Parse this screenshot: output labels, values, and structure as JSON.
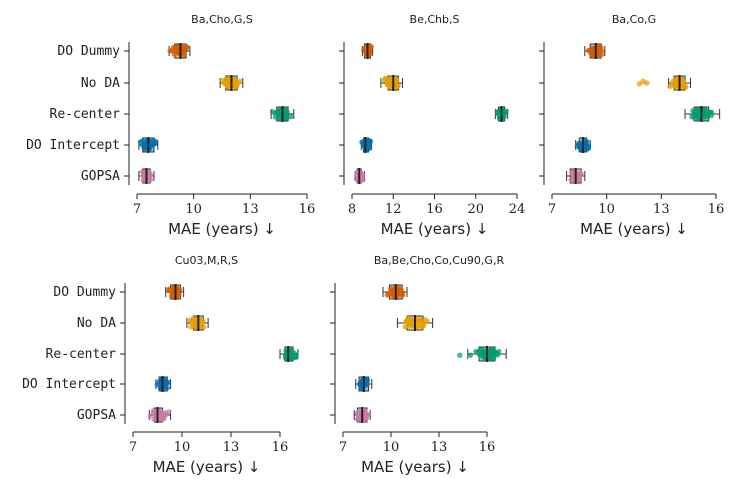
{
  "chart_data": {
    "type": "boxplot",
    "categories": [
      "DO Dummy",
      "No DA",
      "Re-center",
      "DO Intercept",
      "GOPSA"
    ],
    "colors": {
      "DO Dummy": "#d55e00",
      "No DA": "#e69f00",
      "Re-center": "#009e73",
      "DO Intercept": "#0072b2",
      "GOPSA": "#cc79a7"
    },
    "xlabel": "MAE (years) ↓",
    "panels": [
      {
        "title": "Ba,Cho,G,S",
        "xlim": [
          7,
          16
        ],
        "xticks": [
          7,
          10,
          13,
          16
        ],
        "groups": [
          {
            "category": "DO Dummy",
            "median": 9.3,
            "q1": 9.0,
            "q3": 9.6,
            "min": 8.7,
            "max": 9.8,
            "outliers": []
          },
          {
            "category": "No DA",
            "median": 12.0,
            "q1": 11.7,
            "q3": 12.3,
            "min": 11.4,
            "max": 12.6,
            "outliers": []
          },
          {
            "category": "Re-center",
            "median": 14.7,
            "q1": 14.4,
            "q3": 15.0,
            "min": 14.1,
            "max": 15.3,
            "outliers": []
          },
          {
            "category": "DO Intercept",
            "median": 7.6,
            "q1": 7.3,
            "q3": 7.9,
            "min": 7.1,
            "max": 8.1,
            "outliers": []
          },
          {
            "category": "GOPSA",
            "median": 7.5,
            "q1": 7.3,
            "q3": 7.7,
            "min": 7.1,
            "max": 7.9,
            "outliers": []
          }
        ]
      },
      {
        "title": "Be,Chb,S",
        "xlim": [
          8,
          24
        ],
        "xticks": [
          8,
          12,
          16,
          20,
          24
        ],
        "groups": [
          {
            "category": "DO Dummy",
            "median": 9.5,
            "q1": 9.2,
            "q3": 9.8,
            "min": 9.0,
            "max": 10.0,
            "outliers": []
          },
          {
            "category": "No DA",
            "median": 12.0,
            "q1": 11.5,
            "q3": 12.5,
            "min": 10.8,
            "max": 12.9,
            "outliers": []
          },
          {
            "category": "Re-center",
            "median": 22.5,
            "q1": 22.2,
            "q3": 22.8,
            "min": 21.9,
            "max": 23.1,
            "outliers": []
          },
          {
            "category": "DO Intercept",
            "median": 9.3,
            "q1": 9.1,
            "q3": 9.6,
            "min": 8.9,
            "max": 9.9,
            "outliers": []
          },
          {
            "category": "GOPSA",
            "median": 8.7,
            "q1": 8.5,
            "q3": 8.9,
            "min": 8.3,
            "max": 9.2,
            "outliers": []
          }
        ]
      },
      {
        "title": "Ba,Co,G",
        "xlim": [
          7,
          16
        ],
        "xticks": [
          7,
          10,
          13,
          16
        ],
        "groups": [
          {
            "category": "DO Dummy",
            "median": 9.4,
            "q1": 9.1,
            "q3": 9.7,
            "min": 8.8,
            "max": 9.9,
            "outliers": []
          },
          {
            "category": "No DA",
            "median": 14.0,
            "q1": 13.7,
            "q3": 14.3,
            "min": 13.4,
            "max": 14.6,
            "outliers": [
              11.8,
              12.0,
              12.2
            ]
          },
          {
            "category": "Re-center",
            "median": 15.2,
            "q1": 14.8,
            "q3": 15.6,
            "min": 14.3,
            "max": 16.2,
            "outliers": []
          },
          {
            "category": "DO Intercept",
            "median": 8.7,
            "q1": 8.5,
            "q3": 8.9,
            "min": 8.3,
            "max": 9.1,
            "outliers": []
          },
          {
            "category": "GOPSA",
            "median": 8.3,
            "q1": 8.0,
            "q3": 8.6,
            "min": 7.8,
            "max": 8.8,
            "outliers": []
          }
        ]
      },
      {
        "title": "Cu03,M,R,S",
        "xlim": [
          7,
          16
        ],
        "xticks": [
          7,
          10,
          13,
          16
        ],
        "groups": [
          {
            "category": "DO Dummy",
            "median": 9.6,
            "q1": 9.3,
            "q3": 9.9,
            "min": 9.0,
            "max": 10.1,
            "outliers": []
          },
          {
            "category": "No DA",
            "median": 11.0,
            "q1": 10.7,
            "q3": 11.3,
            "min": 10.3,
            "max": 11.6,
            "outliers": []
          },
          {
            "category": "Re-center",
            "median": 16.5,
            "q1": 16.3,
            "q3": 16.8,
            "min": 16.0,
            "max": 17.1,
            "outliers": []
          },
          {
            "category": "DO Intercept",
            "median": 8.8,
            "q1": 8.6,
            "q3": 9.1,
            "min": 8.4,
            "max": 9.3,
            "outliers": []
          },
          {
            "category": "GOPSA",
            "median": 8.5,
            "q1": 8.3,
            "q3": 8.8,
            "min": 8.0,
            "max": 9.3,
            "outliers": []
          }
        ]
      },
      {
        "title": "Ba,Be,Cho,Co,Cu90,G,R",
        "xlim": [
          7,
          19
        ],
        "xticks": [
          7,
          10,
          13,
          16
        ],
        "groups": [
          {
            "category": "DO Dummy",
            "median": 10.3,
            "q1": 9.9,
            "q3": 10.7,
            "min": 9.5,
            "max": 11.0,
            "outliers": []
          },
          {
            "category": "No DA",
            "median": 11.5,
            "q1": 11.0,
            "q3": 12.0,
            "min": 10.4,
            "max": 12.6,
            "outliers": []
          },
          {
            "category": "Re-center",
            "median": 16.0,
            "q1": 15.5,
            "q3": 16.5,
            "min": 14.8,
            "max": 17.2,
            "outliers": [
              14.3
            ]
          },
          {
            "category": "DO Intercept",
            "median": 8.3,
            "q1": 8.0,
            "q3": 8.6,
            "min": 7.8,
            "max": 8.8,
            "outliers": []
          },
          {
            "category": "GOPSA",
            "median": 8.2,
            "q1": 7.9,
            "q3": 8.5,
            "min": 7.7,
            "max": 8.7,
            "outliers": []
          }
        ]
      }
    ]
  }
}
